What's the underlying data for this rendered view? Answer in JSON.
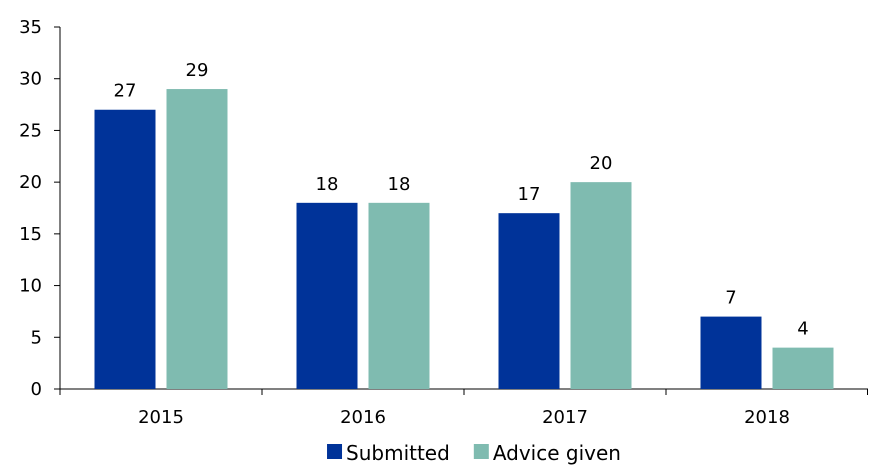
{
  "chart_data": {
    "type": "bar",
    "categories": [
      "2015",
      "2016",
      "2017",
      "2018"
    ],
    "series": [
      {
        "name": "Submitted",
        "values": [
          27,
          18,
          17,
          7
        ],
        "color": "#003399"
      },
      {
        "name": "Advice given",
        "values": [
          29,
          18,
          20,
          4
        ],
        "color": "#7fbbb0"
      }
    ],
    "ylim": [
      0,
      35
    ],
    "yticks": [
      "0",
      "5",
      "10",
      "15",
      "20",
      "25",
      "30",
      "35"
    ],
    "grid": false,
    "data_labels": true,
    "legend_position": "bottom",
    "title": "",
    "xlabel": "",
    "ylabel": ""
  }
}
